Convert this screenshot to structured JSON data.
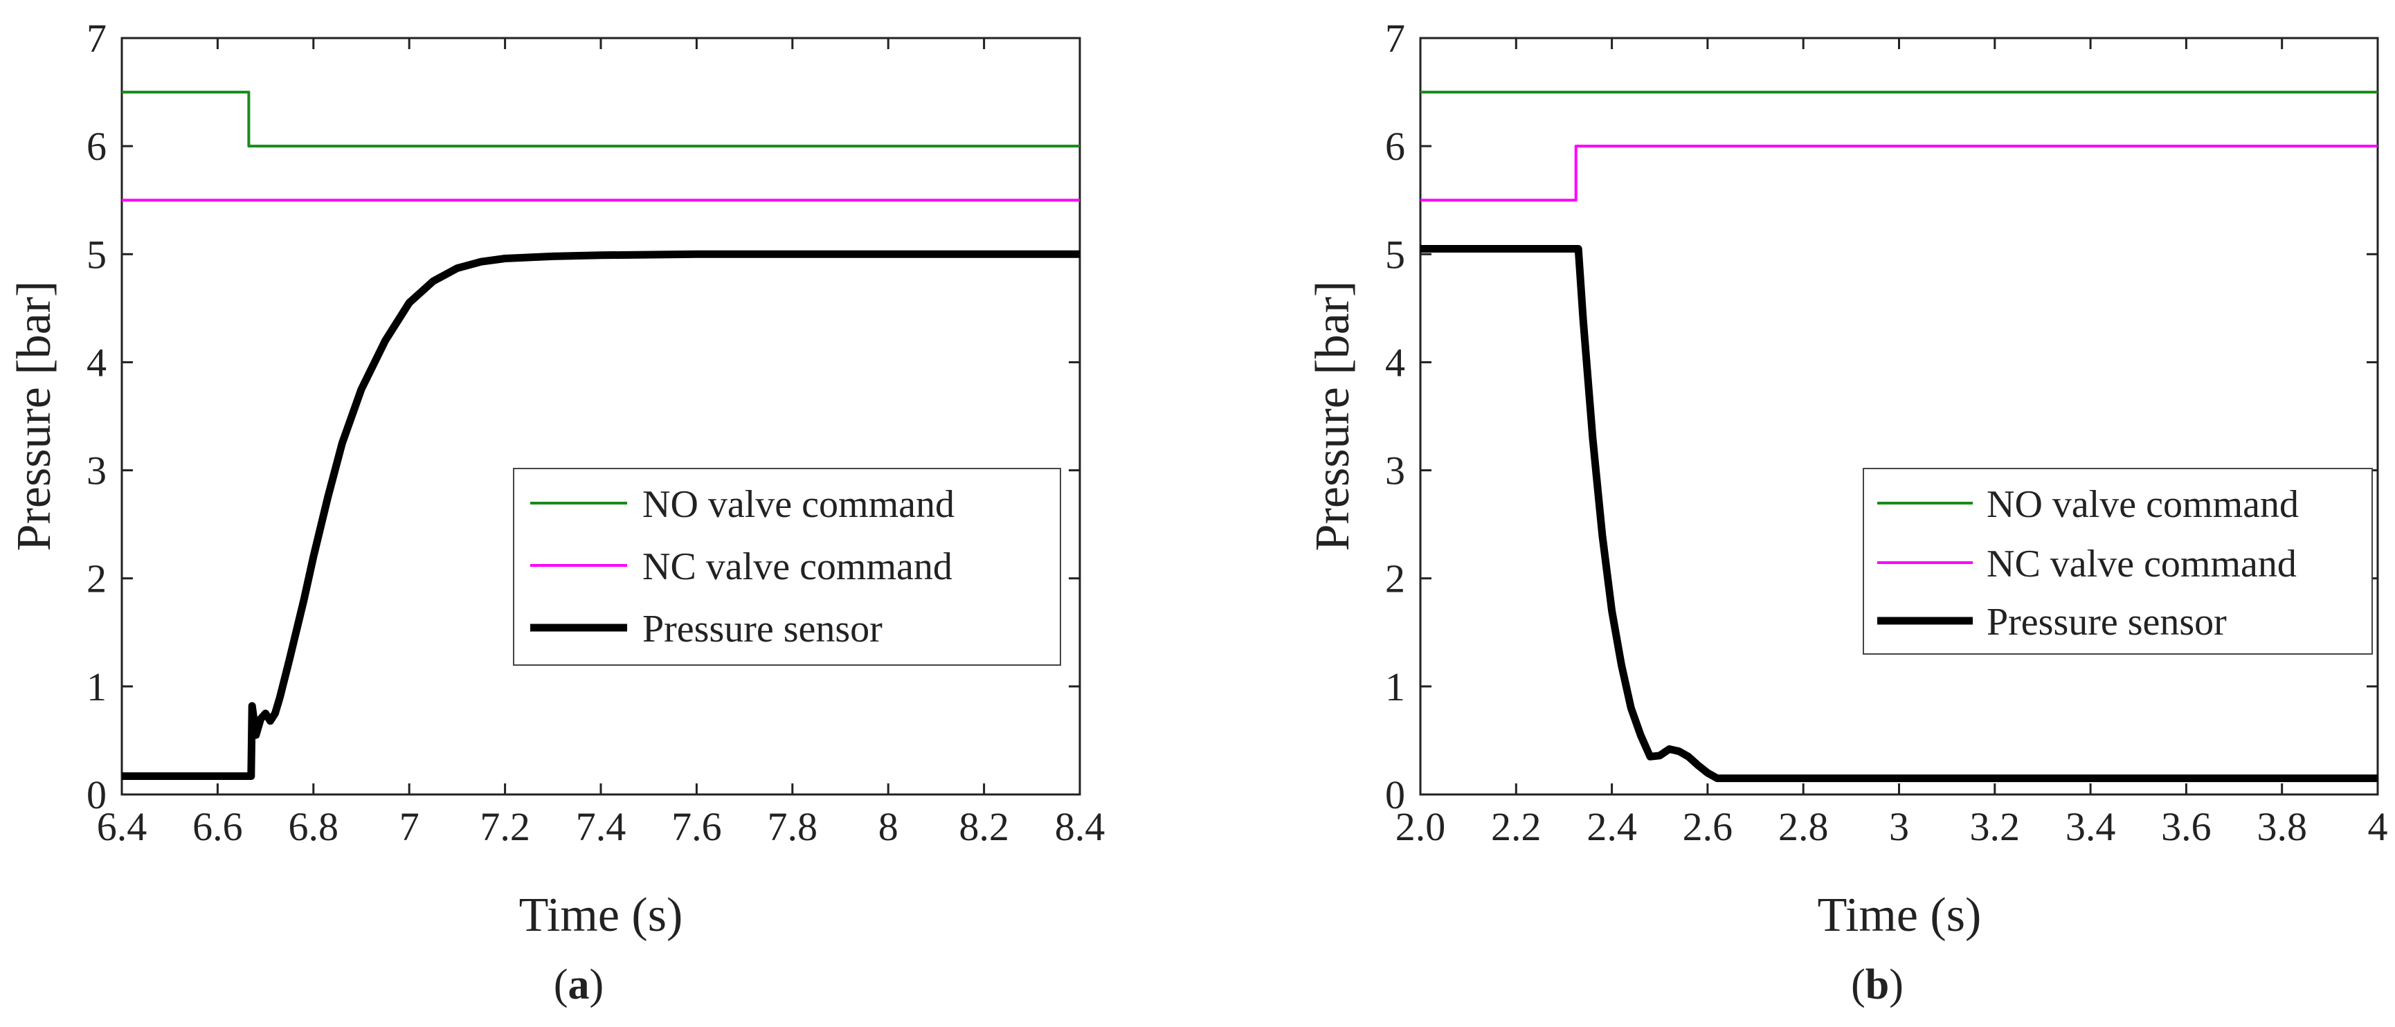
{
  "chart_data": [
    {
      "type": "line",
      "panel": "a",
      "caption_open": "(",
      "caption_letter": "a",
      "caption_close": ")",
      "xlabel": "Time (s)",
      "ylabel": "Pressure [bar]",
      "xlim": [
        6.4,
        8.4
      ],
      "ylim": [
        0,
        7
      ],
      "xticks": [
        6.4,
        6.6,
        6.8,
        7,
        7.2,
        7.4,
        7.6,
        7.8,
        8,
        8.2,
        8.4
      ],
      "xtick_labels": [
        "6.4",
        "6.6",
        "6.8",
        "7",
        "7.2",
        "7.4",
        "7.6",
        "7.8",
        "8",
        "8.2",
        "8.4"
      ],
      "yticks": [
        0,
        1,
        2,
        3,
        4,
        5,
        6,
        7
      ],
      "ytick_labels": [
        "0",
        "1",
        "2",
        "3",
        "4",
        "5",
        "6",
        "7"
      ],
      "legend_position": "center-right",
      "series": [
        {
          "name": "NO valve command",
          "color": "#1a8a1a",
          "style": "thin",
          "x": [
            6.4,
            6.665,
            6.665,
            8.4
          ],
          "y": [
            6.5,
            6.5,
            6.0,
            6.0
          ]
        },
        {
          "name": "NC valve command",
          "color": "#ff00ff",
          "style": "thin",
          "x": [
            6.4,
            8.4
          ],
          "y": [
            5.5,
            5.5
          ]
        },
        {
          "name": "Pressure sensor",
          "color": "#000000",
          "style": "thick",
          "x": [
            6.4,
            6.5,
            6.6,
            6.66,
            6.67,
            6.672,
            6.68,
            6.69,
            6.7,
            6.71,
            6.72,
            6.73,
            6.75,
            6.78,
            6.8,
            6.83,
            6.86,
            6.9,
            6.95,
            7.0,
            7.05,
            7.1,
            7.15,
            7.2,
            7.3,
            7.4,
            7.6,
            7.8,
            8.0,
            8.2,
            8.4
          ],
          "y": [
            0.17,
            0.17,
            0.17,
            0.17,
            0.17,
            0.82,
            0.55,
            0.7,
            0.75,
            0.68,
            0.75,
            0.9,
            1.25,
            1.8,
            2.2,
            2.75,
            3.25,
            3.75,
            4.2,
            4.55,
            4.75,
            4.87,
            4.93,
            4.96,
            4.98,
            4.99,
            5.0,
            5.0,
            5.0,
            5.0,
            5.0
          ]
        }
      ]
    },
    {
      "type": "line",
      "panel": "b",
      "caption_open": "(",
      "caption_letter": "b",
      "caption_close": ")",
      "xlabel": "Time (s)",
      "ylabel": "Pressure [bar]",
      "xlim": [
        2.0,
        4.0
      ],
      "ylim": [
        0,
        7
      ],
      "xticks": [
        2.0,
        2.2,
        2.4,
        2.6,
        2.8,
        3.0,
        3.2,
        3.4,
        3.6,
        3.8,
        4.0
      ],
      "xtick_labels": [
        "2.0",
        "2.2",
        "2.4",
        "2.6",
        "2.8",
        "3",
        "3.2",
        "3.4",
        "3.6",
        "3.8",
        "4"
      ],
      "yticks": [
        0,
        1,
        2,
        3,
        4,
        5,
        6,
        7
      ],
      "ytick_labels": [
        "0",
        "1",
        "2",
        "3",
        "4",
        "5",
        "6",
        "7"
      ],
      "legend_position": "center-right",
      "series": [
        {
          "name": "NO valve command",
          "color": "#1a8a1a",
          "style": "thin",
          "x": [
            2.0,
            4.0
          ],
          "y": [
            6.5,
            6.5
          ]
        },
        {
          "name": "NC valve command",
          "color": "#ff00ff",
          "style": "thin",
          "x": [
            2.0,
            2.325,
            2.325,
            4.0
          ],
          "y": [
            5.5,
            5.5,
            6.0,
            6.0
          ]
        },
        {
          "name": "Pressure sensor",
          "color": "#000000",
          "style": "thick",
          "x": [
            2.0,
            2.1,
            2.2,
            2.3,
            2.33,
            2.34,
            2.36,
            2.38,
            2.4,
            2.42,
            2.44,
            2.46,
            2.48,
            2.5,
            2.52,
            2.54,
            2.56,
            2.58,
            2.6,
            2.62,
            2.7,
            2.8,
            3.0,
            3.2,
            3.4,
            3.6,
            3.8,
            4.0
          ],
          "y": [
            5.05,
            5.05,
            5.05,
            5.05,
            5.05,
            4.4,
            3.3,
            2.4,
            1.7,
            1.2,
            0.8,
            0.55,
            0.35,
            0.36,
            0.42,
            0.4,
            0.35,
            0.27,
            0.2,
            0.15,
            0.15,
            0.15,
            0.15,
            0.15,
            0.15,
            0.15,
            0.15,
            0.15
          ]
        }
      ]
    }
  ]
}
